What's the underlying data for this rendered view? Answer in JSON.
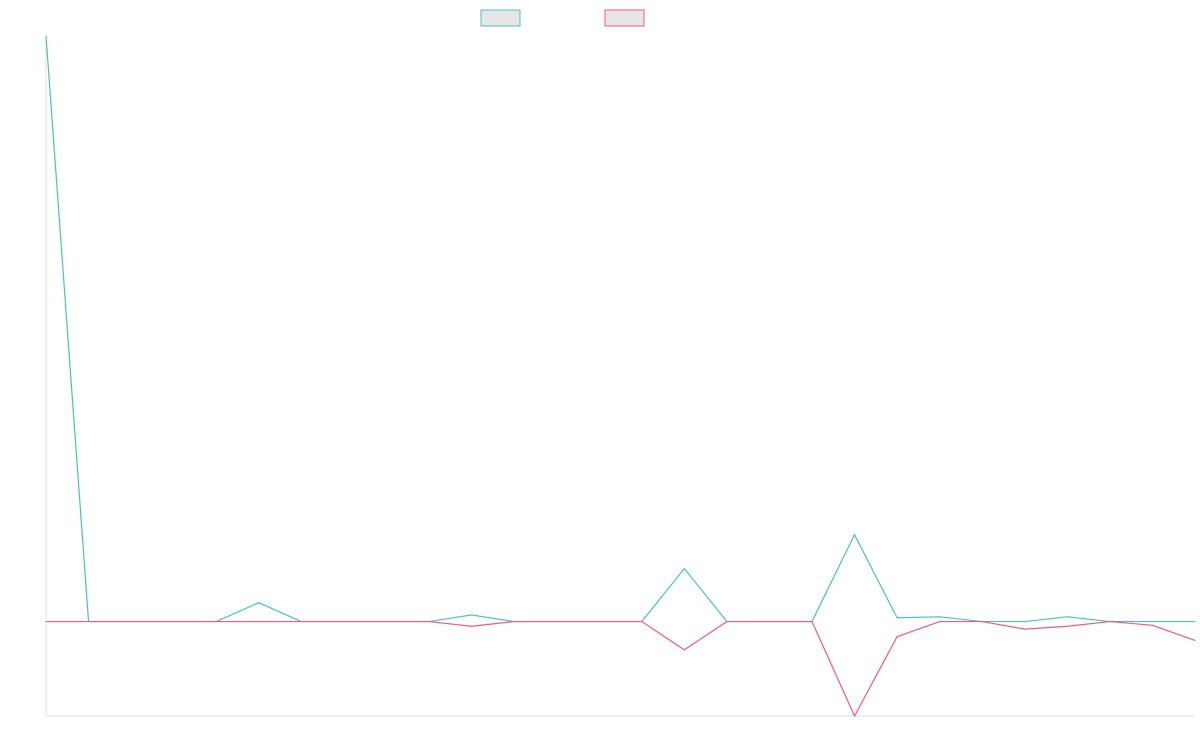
{
  "chart_data": {
    "type": "line",
    "title": "",
    "xlabel": "",
    "ylabel": "",
    "x": [
      0,
      1,
      2,
      3,
      4,
      5,
      6,
      7,
      8,
      9,
      10,
      11,
      12,
      13,
      14,
      15,
      16,
      17,
      18,
      19,
      20,
      21,
      22,
      23,
      24,
      25,
      26,
      27
    ],
    "ylim": [
      -100,
      620
    ],
    "grid": false,
    "legend": "top-center",
    "series": [
      {
        "name": "",
        "color": "#4bc0c0",
        "fill": "#e6e6e6",
        "values": [
          620,
          0,
          0,
          0,
          0,
          20,
          0,
          0,
          0,
          0,
          7,
          0,
          0,
          0,
          0,
          56,
          0,
          0,
          0,
          92,
          4,
          5,
          0,
          0,
          5,
          0,
          0,
          0
        ]
      },
      {
        "name": "",
        "color": "#f25a7f",
        "fill": "#e6e6e6",
        "values": [
          0,
          0,
          0,
          0,
          0,
          0,
          0,
          0,
          0,
          0,
          -5,
          0,
          0,
          0,
          0,
          -30,
          0,
          0,
          0,
          -100,
          -16,
          0,
          0,
          -8,
          -5,
          0,
          -4,
          -20
        ]
      }
    ]
  }
}
